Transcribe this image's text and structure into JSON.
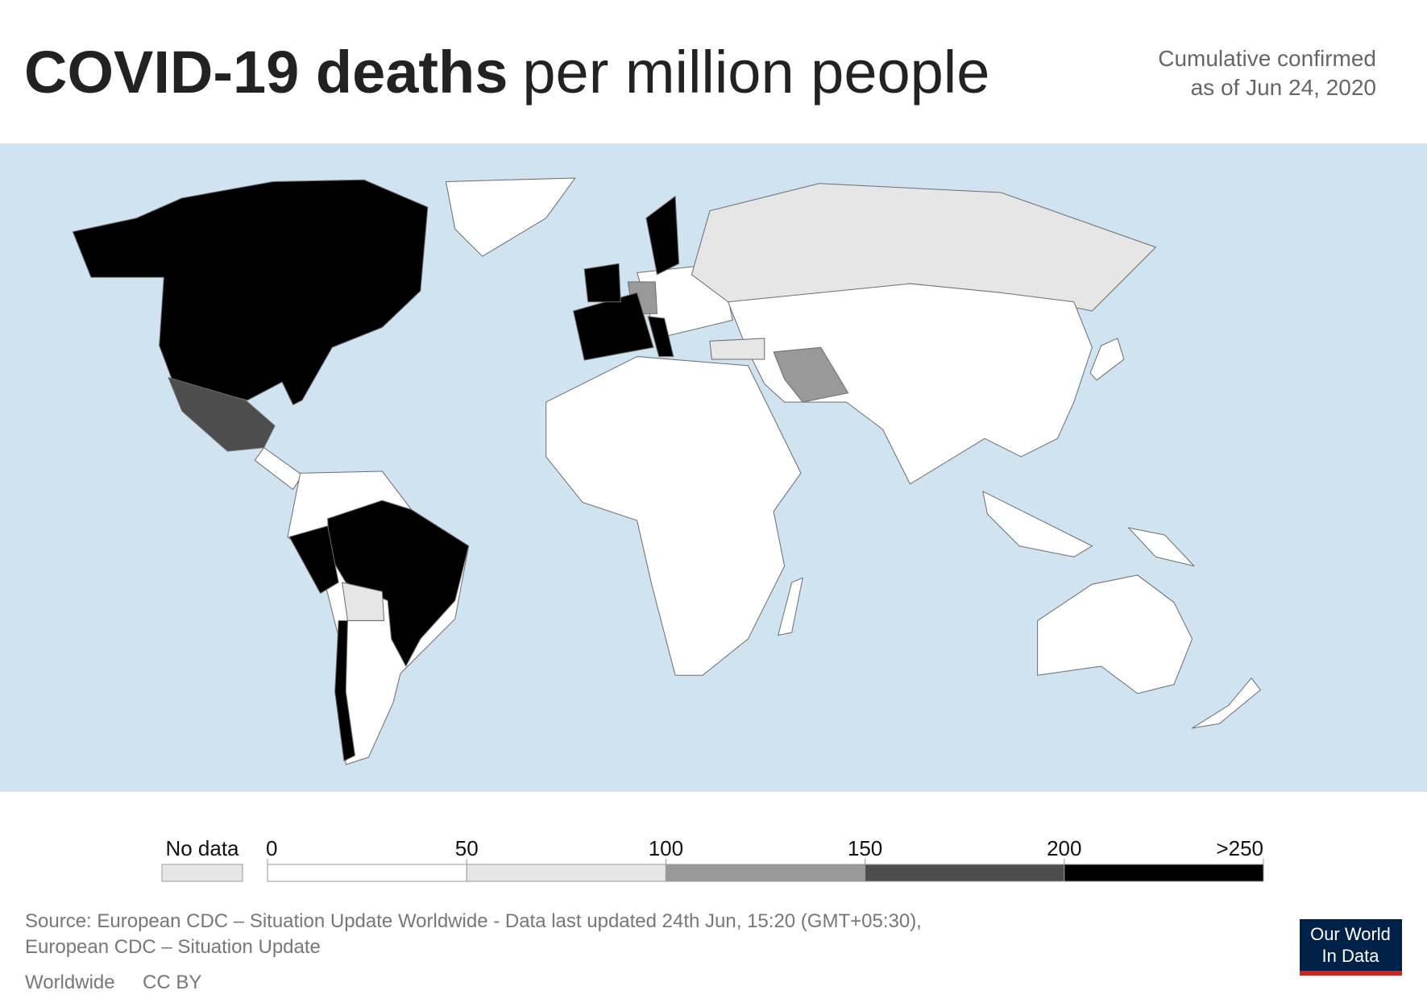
{
  "header": {
    "title_bold": "COVID-19 deaths",
    "title_rest": "per million people",
    "subtitle": [
      "Cumulative confirmed",
      "as of Jun 24, 2020"
    ]
  },
  "legend": {
    "no_data": "No data",
    "no_data_color": "#e6e6e6",
    "ticks": [
      0,
      50,
      100,
      150,
      200,
      {
        "value": 250,
        "label": ">250"
      }
    ],
    "colors": [
      "#ffffff",
      "#e6e6e6",
      "#999999",
      "#4d4d4d",
      "#000000"
    ]
  },
  "footer": {
    "source": [
      "Source: European CDC – Situation Update Worldwide - Data last updated 24th Jun, 15:20 (GMT+05:30),",
      "European CDC – Situation Update"
    ],
    "tabs": [
      "Worldwide",
      "CC BY"
    ],
    "logo": [
      "Our World",
      "In Data"
    ]
  }
}
